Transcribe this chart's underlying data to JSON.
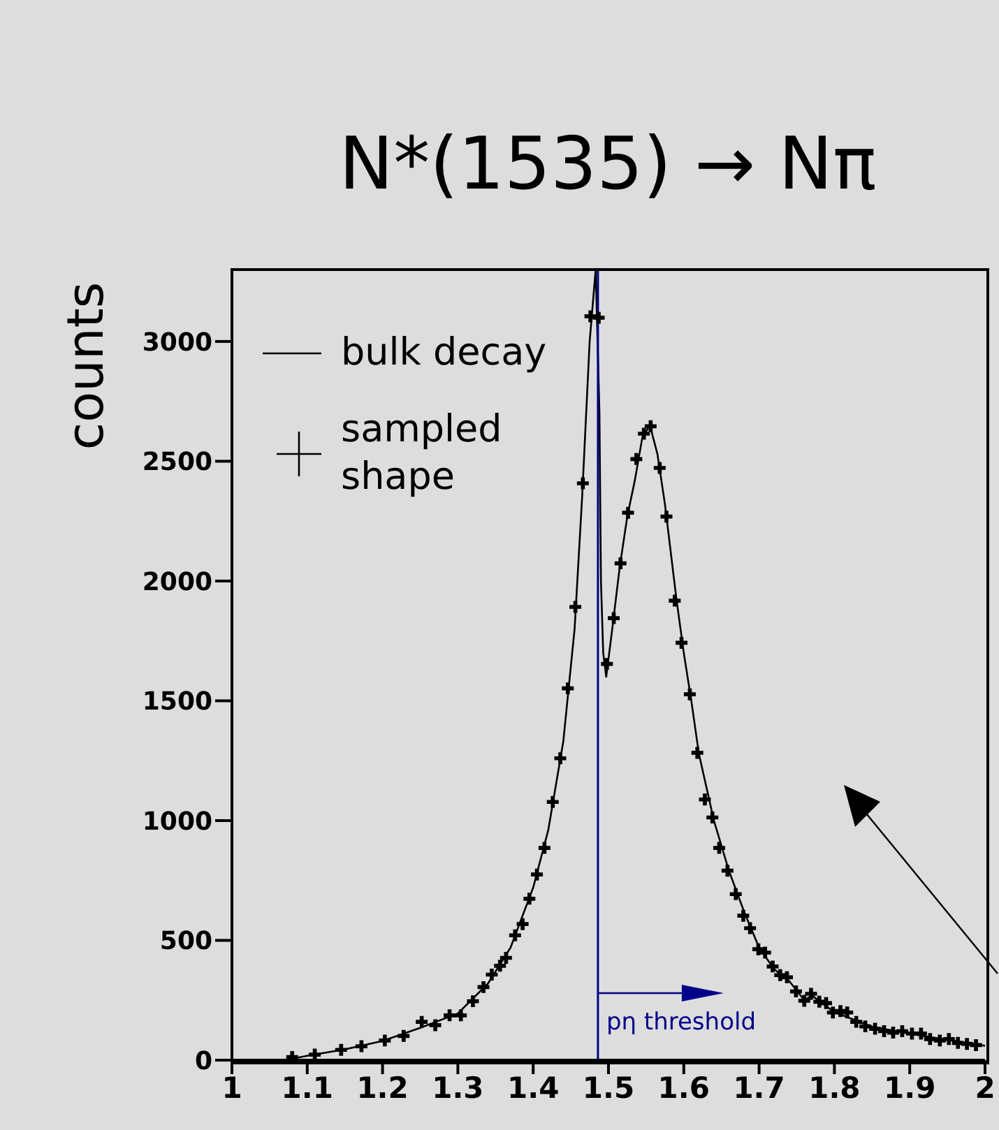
{
  "chart_data": {
    "type": "scatter",
    "title": "N*(1535) → Nπ",
    "ylabel": "counts",
    "xlim": [
      1,
      2
    ],
    "xticks": [
      1,
      1.1,
      1.2,
      1.3,
      1.4,
      1.5,
      1.6,
      1.7,
      1.8,
      1.9,
      2
    ],
    "ylim": [
      0,
      3300
    ],
    "yticks": [
      0,
      500,
      1000,
      1500,
      2000,
      2500,
      3000
    ],
    "grid": false,
    "legend": "top left",
    "ref_lines": [
      {
        "axis": "x",
        "value": 1.486,
        "label": "pη threshold",
        "color": "#00008b",
        "line_style": "solid"
      }
    ],
    "series": [
      {
        "name": "bulk decay",
        "type": "line",
        "color": "#000000",
        "marker": "none",
        "line_style": "solid",
        "x": [
          1.07,
          1.1,
          1.15,
          1.2,
          1.25,
          1.3,
          1.34,
          1.37,
          1.4,
          1.42,
          1.44,
          1.455,
          1.465,
          1.475,
          1.483,
          1.488,
          1.49,
          1.493,
          1.497,
          1.505,
          1.515,
          1.525,
          1.535,
          1.545,
          1.555,
          1.565,
          1.575,
          1.59,
          1.6,
          1.61,
          1.62,
          1.64,
          1.66,
          1.68,
          1.7,
          1.72,
          1.74,
          1.76,
          1.77,
          1.8,
          1.85,
          1.9,
          1.95,
          2.0
        ],
        "values": [
          0,
          18,
          45,
          80,
          135,
          195,
          320,
          470,
          720,
          960,
          1330,
          1800,
          2350,
          3000,
          3300,
          2700,
          2000,
          1700,
          1600,
          1800,
          2060,
          2270,
          2420,
          2600,
          2650,
          2530,
          2320,
          1930,
          1700,
          1500,
          1280,
          1000,
          790,
          620,
          470,
          380,
          330,
          250,
          270,
          200,
          140,
          110,
          85,
          60
        ]
      },
      {
        "name": "sampled shape",
        "type": "scatter",
        "color": "#000000",
        "marker": "cross",
        "x": [
          1.08,
          1.11,
          1.145,
          1.172,
          1.203,
          1.228,
          1.252,
          1.27,
          1.289,
          1.304,
          1.32,
          1.334,
          1.345,
          1.356,
          1.364,
          1.376,
          1.386,
          1.395,
          1.405,
          1.415,
          1.426,
          1.436,
          1.446,
          1.456,
          1.466,
          1.476,
          1.487,
          1.498,
          1.507,
          1.516,
          1.526,
          1.537,
          1.547,
          1.556,
          1.568,
          1.577,
          1.588,
          1.597,
          1.608,
          1.618,
          1.628,
          1.638,
          1.647,
          1.658,
          1.669,
          1.679,
          1.688,
          1.699,
          1.708,
          1.718,
          1.728,
          1.737,
          1.749,
          1.76,
          1.769,
          1.78,
          1.789,
          1.798,
          1.808,
          1.817,
          1.829,
          1.841,
          1.854,
          1.866,
          1.878,
          1.89,
          1.903,
          1.915,
          1.927,
          1.94,
          1.952,
          1.964,
          1.976,
          1.988
        ],
        "values": [
          13,
          23,
          43,
          58,
          82,
          101,
          160,
          146,
          187,
          187,
          246,
          305,
          357,
          394,
          427,
          521,
          568,
          674,
          775,
          886,
          1078,
          1260,
          1552,
          1892,
          2408,
          3105,
          3099,
          1654,
          1845,
          2074,
          2285,
          2509,
          2615,
          2646,
          2472,
          2269,
          1918,
          1742,
          1527,
          1283,
          1088,
          1013,
          886,
          791,
          693,
          603,
          551,
          463,
          449,
          391,
          355,
          346,
          287,
          248,
          277,
          244,
          238,
          199,
          205,
          199,
          160,
          141,
          131,
          121,
          115,
          121,
          111,
          111,
          88,
          82,
          88,
          72,
          68,
          63
        ]
      }
    ]
  }
}
